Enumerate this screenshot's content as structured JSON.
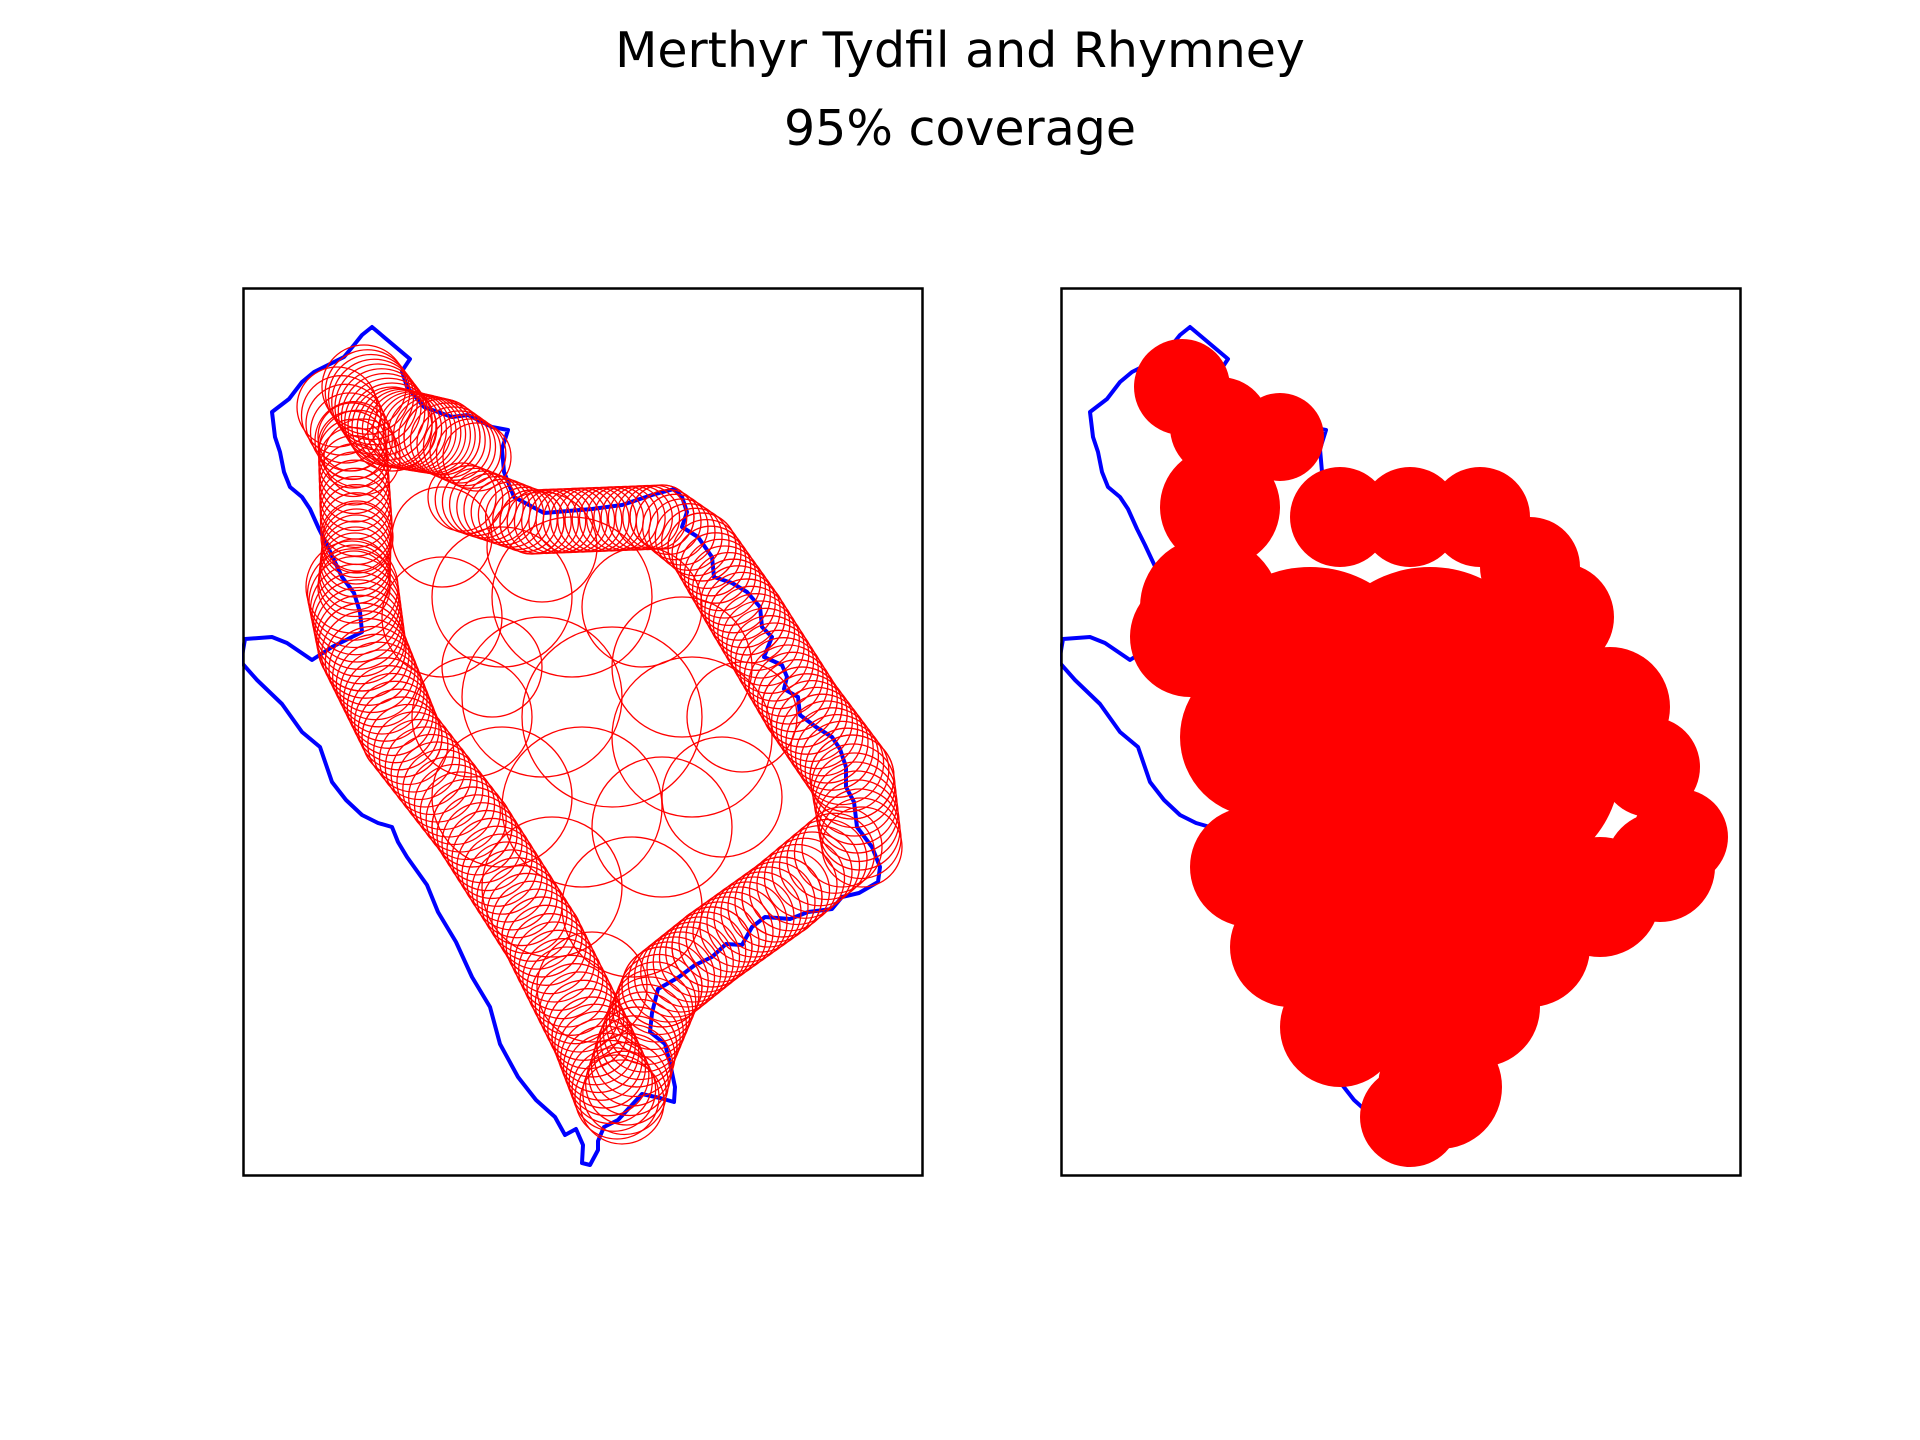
{
  "title": "Merthyr Tydfil and Rhymney",
  "subtitle": "95% coverage",
  "colors": {
    "boundary": "#0000ff",
    "coverage": "#ff0000",
    "frame": "#000000",
    "background": "#ffffff"
  },
  "panels": [
    {
      "name": "circle-outline-panel",
      "style": "outlined circles"
    },
    {
      "name": "filled-coverage-panel",
      "style": "filled circles"
    }
  ]
}
